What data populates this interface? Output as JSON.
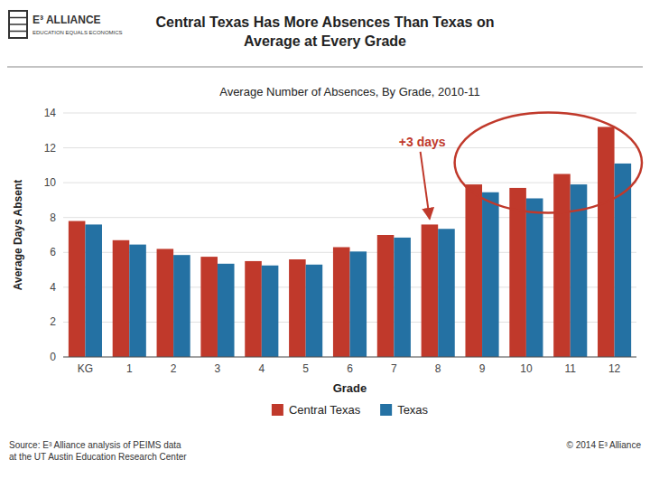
{
  "chart_data": {
    "type": "bar",
    "title": "Central Texas Has More Absences Than Texas on\nAverage at Every Grade",
    "subtitle": "Average Number of Absences, By Grade, 2010-11",
    "x_label": "Grade",
    "y_label": "Average Days Absent",
    "categories": [
      "KG",
      "1",
      "2",
      "3",
      "4",
      "5",
      "6",
      "7",
      "8",
      "9",
      "10",
      "11",
      "12"
    ],
    "series": [
      {
        "name": "Central Texas",
        "color": "#C0392B",
        "values": [
          7.8,
          6.7,
          6.2,
          5.75,
          5.5,
          5.6,
          6.3,
          7.0,
          7.6,
          9.9,
          9.7,
          10.5,
          13.2
        ]
      },
      {
        "name": "Texas",
        "color": "#2471A3",
        "values": [
          7.6,
          6.45,
          5.85,
          5.35,
          5.25,
          5.3,
          6.05,
          6.85,
          7.35,
          9.45,
          9.1,
          9.9,
          11.1
        ]
      }
    ],
    "ylim": [
      0,
      14
    ],
    "yticks": [
      0,
      2,
      4,
      6,
      8,
      10,
      12,
      14
    ],
    "grid": true,
    "legend": "bottom",
    "annotations": [
      "+3 days",
      "Source: E³ Alliance analysis of PEIMS data\nat the UT Austin Education Research Center",
      "© 2014 E³ Alliance",
      "E³ ALLIANCE",
      "EDUCATION EQUALS ECONOMICS"
    ]
  }
}
